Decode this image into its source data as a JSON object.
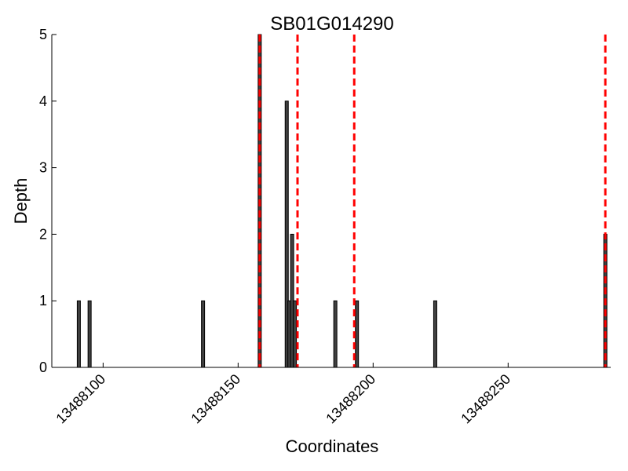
{
  "chart_data": {
    "type": "bar",
    "title": "SB01G014290",
    "xlabel": "Coordinates",
    "ylabel": "Depth",
    "xlim": [
      13488081,
      13488288
    ],
    "ylim": [
      0,
      5
    ],
    "x_ticks": [
      {
        "value": 13488100,
        "label": "13488100"
      },
      {
        "value": 13488150,
        "label": "13488150"
      },
      {
        "value": 13488200,
        "label": "13488200"
      },
      {
        "value": 13488250,
        "label": "13488250"
      }
    ],
    "y_ticks": [
      {
        "value": 0,
        "label": "0"
      },
      {
        "value": 1,
        "label": "1"
      },
      {
        "value": 2,
        "label": "2"
      },
      {
        "value": 3,
        "label": "3"
      },
      {
        "value": 4,
        "label": "4"
      },
      {
        "value": 5,
        "label": "5"
      }
    ],
    "bars": [
      {
        "x": 13488091,
        "y": 1
      },
      {
        "x": 13488095,
        "y": 1
      },
      {
        "x": 13488137,
        "y": 1
      },
      {
        "x": 13488158,
        "y": 5
      },
      {
        "x": 13488168,
        "y": 4
      },
      {
        "x": 13488169,
        "y": 1
      },
      {
        "x": 13488170,
        "y": 2
      },
      {
        "x": 13488171,
        "y": 1
      },
      {
        "x": 13488186,
        "y": 1
      },
      {
        "x": 13488194,
        "y": 1
      },
      {
        "x": 13488223,
        "y": 1
      },
      {
        "x": 13488286,
        "y": 2
      }
    ],
    "vlines": [
      13488158,
      13488172,
      13488193,
      13488286
    ],
    "grid": false,
    "colors": {
      "bar_fill": "#404040",
      "bar_edge": "#000000",
      "vline": "#ff0000"
    }
  }
}
